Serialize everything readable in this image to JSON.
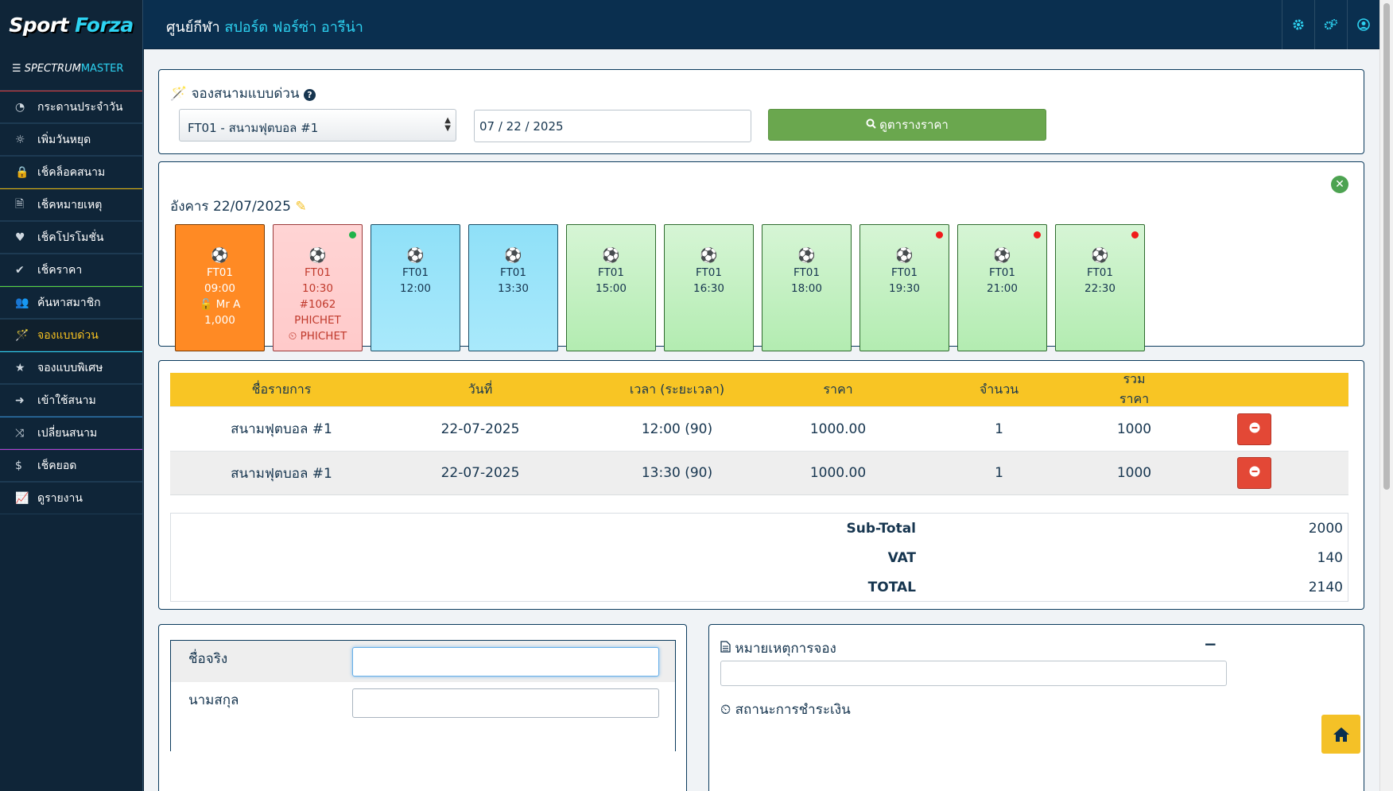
{
  "brand": {
    "name_a": "Sport",
    "name_b": "Forza"
  },
  "header": {
    "title_prefix": "ศูนย์กีฬา",
    "title_highlight": "สปอร์ต ฟอร์ซ่า อารีน่า"
  },
  "top_icons": [
    "gear-icon",
    "gears-icon",
    "user-circle-icon"
  ],
  "sidebar": {
    "header_a": "SPECTRUM",
    "header_b": "MASTER",
    "items": [
      {
        "label": "กระดานประจำวัน",
        "icon": "dashboard-icon",
        "accent": "#e33b3b"
      },
      {
        "label": "เพิ่มวันหยุด",
        "icon": "sun-icon",
        "accent": "#1d3a52"
      },
      {
        "label": "เช็คล็อคสนาม",
        "icon": "lock-icon",
        "accent": "#1d3a52"
      },
      {
        "label": "เช็คหมายเหตุ",
        "icon": "file-icon",
        "accent": "#e8b400"
      },
      {
        "label": "เช็คโปรโมชั่น",
        "icon": "heart-icon",
        "accent": "#1d3a52"
      },
      {
        "label": "เช็คราคา",
        "icon": "check-icon",
        "accent": "#1d3a52"
      },
      {
        "label": "ค้นหาสมาชิก",
        "icon": "users-icon",
        "accent": "#57d43c"
      },
      {
        "label": "จองแบบด่วน",
        "icon": "wand-icon",
        "accent": "#1d3a52"
      },
      {
        "label": "จองแบบพิเศษ",
        "icon": "star-icon",
        "accent": "#2dd3f2"
      },
      {
        "label": "เข้าใช้สนาม",
        "icon": "sign-in-icon",
        "accent": "#1d3a52"
      },
      {
        "label": "เปลี่ยนสนาม",
        "icon": "shuffle-icon",
        "accent": "#2f86c9"
      },
      {
        "label": "เช็คยอด",
        "icon": "dollar-icon",
        "accent": "#b43fd1"
      },
      {
        "label": "ดูรายงาน",
        "icon": "chart-icon",
        "accent": "#1d3a52"
      }
    ],
    "active_index": 7
  },
  "quick_booking": {
    "title": "จองสนามแบบด่วน",
    "field_select": "FT01 - สนามฟุตบอล #1",
    "date": "07 / 22 / 2025",
    "search_button": "ดูตารางราคา"
  },
  "schedule": {
    "day_title": "อังคาร 22/07/2025",
    "slots": [
      {
        "state": "booked",
        "dot": "",
        "lines": [
          "FT01",
          "09:00",
          "🔓 Mr A",
          "1,000"
        ]
      },
      {
        "state": "pending",
        "dot": "green",
        "lines": [
          "FT01",
          "10:30",
          "#1062",
          "PHICHET",
          "⏲ PHICHET"
        ]
      },
      {
        "state": "selected",
        "dot": "",
        "lines": [
          "FT01",
          "12:00"
        ]
      },
      {
        "state": "selected",
        "dot": "",
        "lines": [
          "FT01",
          "13:30"
        ]
      },
      {
        "state": "free",
        "dot": "",
        "lines": [
          "FT01",
          "15:00"
        ]
      },
      {
        "state": "free",
        "dot": "",
        "lines": [
          "FT01",
          "16:30"
        ]
      },
      {
        "state": "free",
        "dot": "",
        "lines": [
          "FT01",
          "18:00"
        ]
      },
      {
        "state": "free",
        "dot": "red",
        "lines": [
          "FT01",
          "19:30"
        ]
      },
      {
        "state": "free",
        "dot": "red",
        "lines": [
          "FT01",
          "21:00"
        ]
      },
      {
        "state": "free",
        "dot": "red",
        "lines": [
          "FT01",
          "22:30"
        ]
      }
    ]
  },
  "cart": {
    "headers": [
      "ชื่อรายการ",
      "วันที่",
      "เวลา (ระยะเวลา)",
      "ราคา",
      "จำนวน",
      "รวมราคา"
    ],
    "rows": [
      [
        "สนามฟุตบอล #1",
        "22-07-2025",
        "12:00 (90)",
        "1000.00",
        "1",
        "1000"
      ],
      [
        "สนามฟุตบอล #1",
        "22-07-2025",
        "13:30 (90)",
        "1000.00",
        "1",
        "1000"
      ]
    ],
    "subtotal_label": "Sub-Total",
    "subtotal": "2000",
    "vat_label": "VAT",
    "vat": "140",
    "total_label": "TOTAL",
    "total": "2140"
  },
  "customer_form": {
    "first_name_label": "ชื่อจริง",
    "last_name_label": "นามสกุล"
  },
  "notes": {
    "title": "หมายเหตุการจอง",
    "payment_title": "สถานะการชำระเงิน"
  },
  "colors": {
    "navy": "#0a2f4f",
    "cyan": "#2dd3f2",
    "orange": "#ff8a24",
    "yellow": "#f8c524",
    "green": "#6aa74e",
    "red": "#e34836"
  }
}
